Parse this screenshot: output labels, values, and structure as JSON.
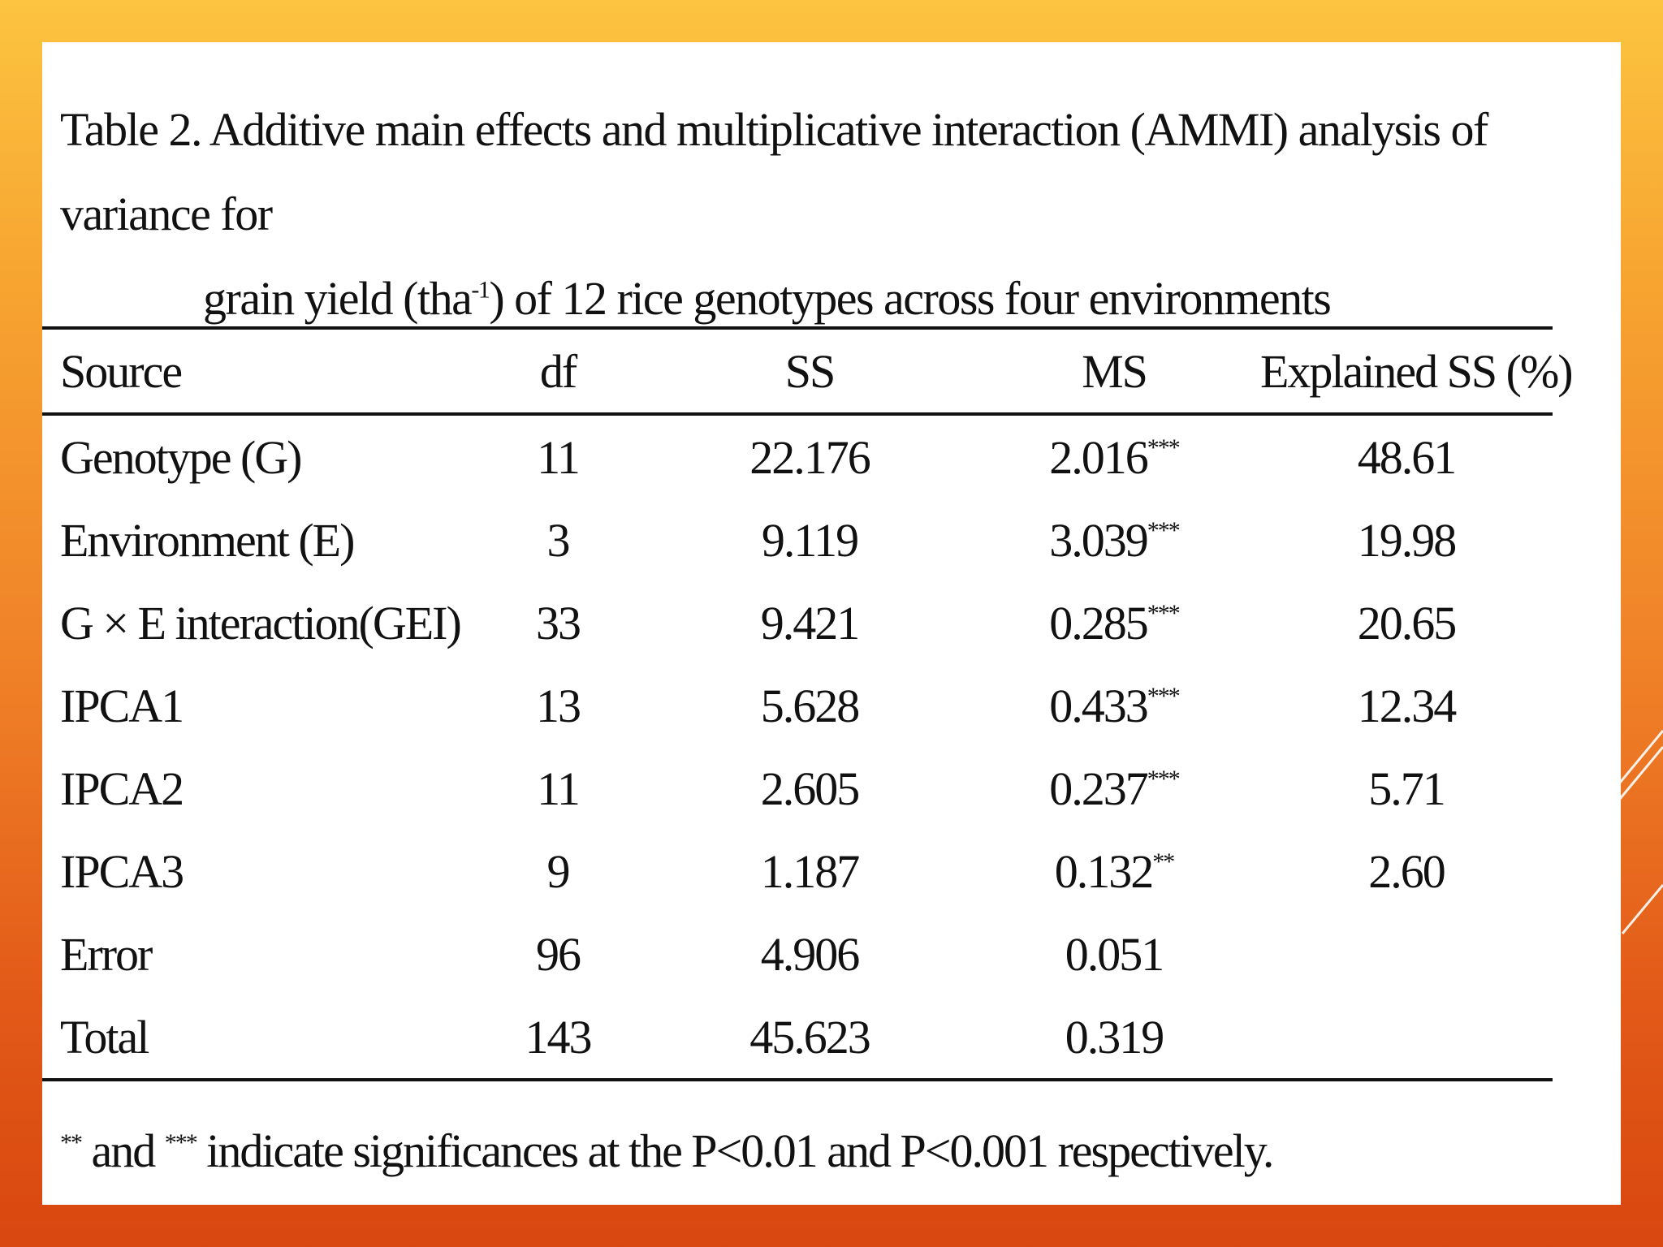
{
  "caption": {
    "prefix": "Table 2.",
    "line1": "Additive main effects and multiplicative interaction (AMMI) analysis of variance for",
    "line2_a": "grain yield (tha",
    "line2_sup": "-1",
    "line2_b": ") of 12 rice genotypes across four environments"
  },
  "table": {
    "headers": {
      "source": "Source",
      "df": "df",
      "ss": "SS",
      "ms": "MS",
      "explained": "Explained SS (%)"
    },
    "rows": [
      {
        "source": "Genotype (G)",
        "df": "11",
        "ss": "22.176",
        "ms": "2.016",
        "sig": "***",
        "explained": "48.61"
      },
      {
        "source": "Environment (E)",
        "df": "3",
        "ss": "9.119",
        "ms": "3.039",
        "sig": "***",
        "explained": "19.98"
      },
      {
        "source": "G × E interaction(GEI)",
        "df": "33",
        "ss": "9.421",
        "ms": "0.285",
        "sig": "***",
        "explained": "20.65"
      },
      {
        "source": "IPCA1",
        "df": "13",
        "ss": "5.628",
        "ms": "0.433",
        "sig": "***",
        "explained": "12.34"
      },
      {
        "source": "IPCA2",
        "df": "11",
        "ss": "2.605",
        "ms": "0.237",
        "sig": "***",
        "explained": "5.71"
      },
      {
        "source": "IPCA3",
        "df": "9",
        "ss": "1.187",
        "ms": "0.132",
        "sig": "**",
        "explained": "2.60"
      },
      {
        "source": "Error",
        "df": "96",
        "ss": "4.906",
        "ms": "0.051",
        "sig": "",
        "explained": ""
      },
      {
        "source": "Total",
        "df": "143",
        "ss": "45.623",
        "ms": "0.319",
        "sig": "",
        "explained": ""
      }
    ]
  },
  "footnote": {
    "sym1": "**",
    "text1": "and",
    "sym2": "***",
    "text2": "indicate significances at the P<0.01 and P<0.001 respectively."
  },
  "colors": {
    "background_top": "#fcc440",
    "background_bottom": "#d8470f",
    "panel": "#ffffff",
    "text": "#111111"
  }
}
